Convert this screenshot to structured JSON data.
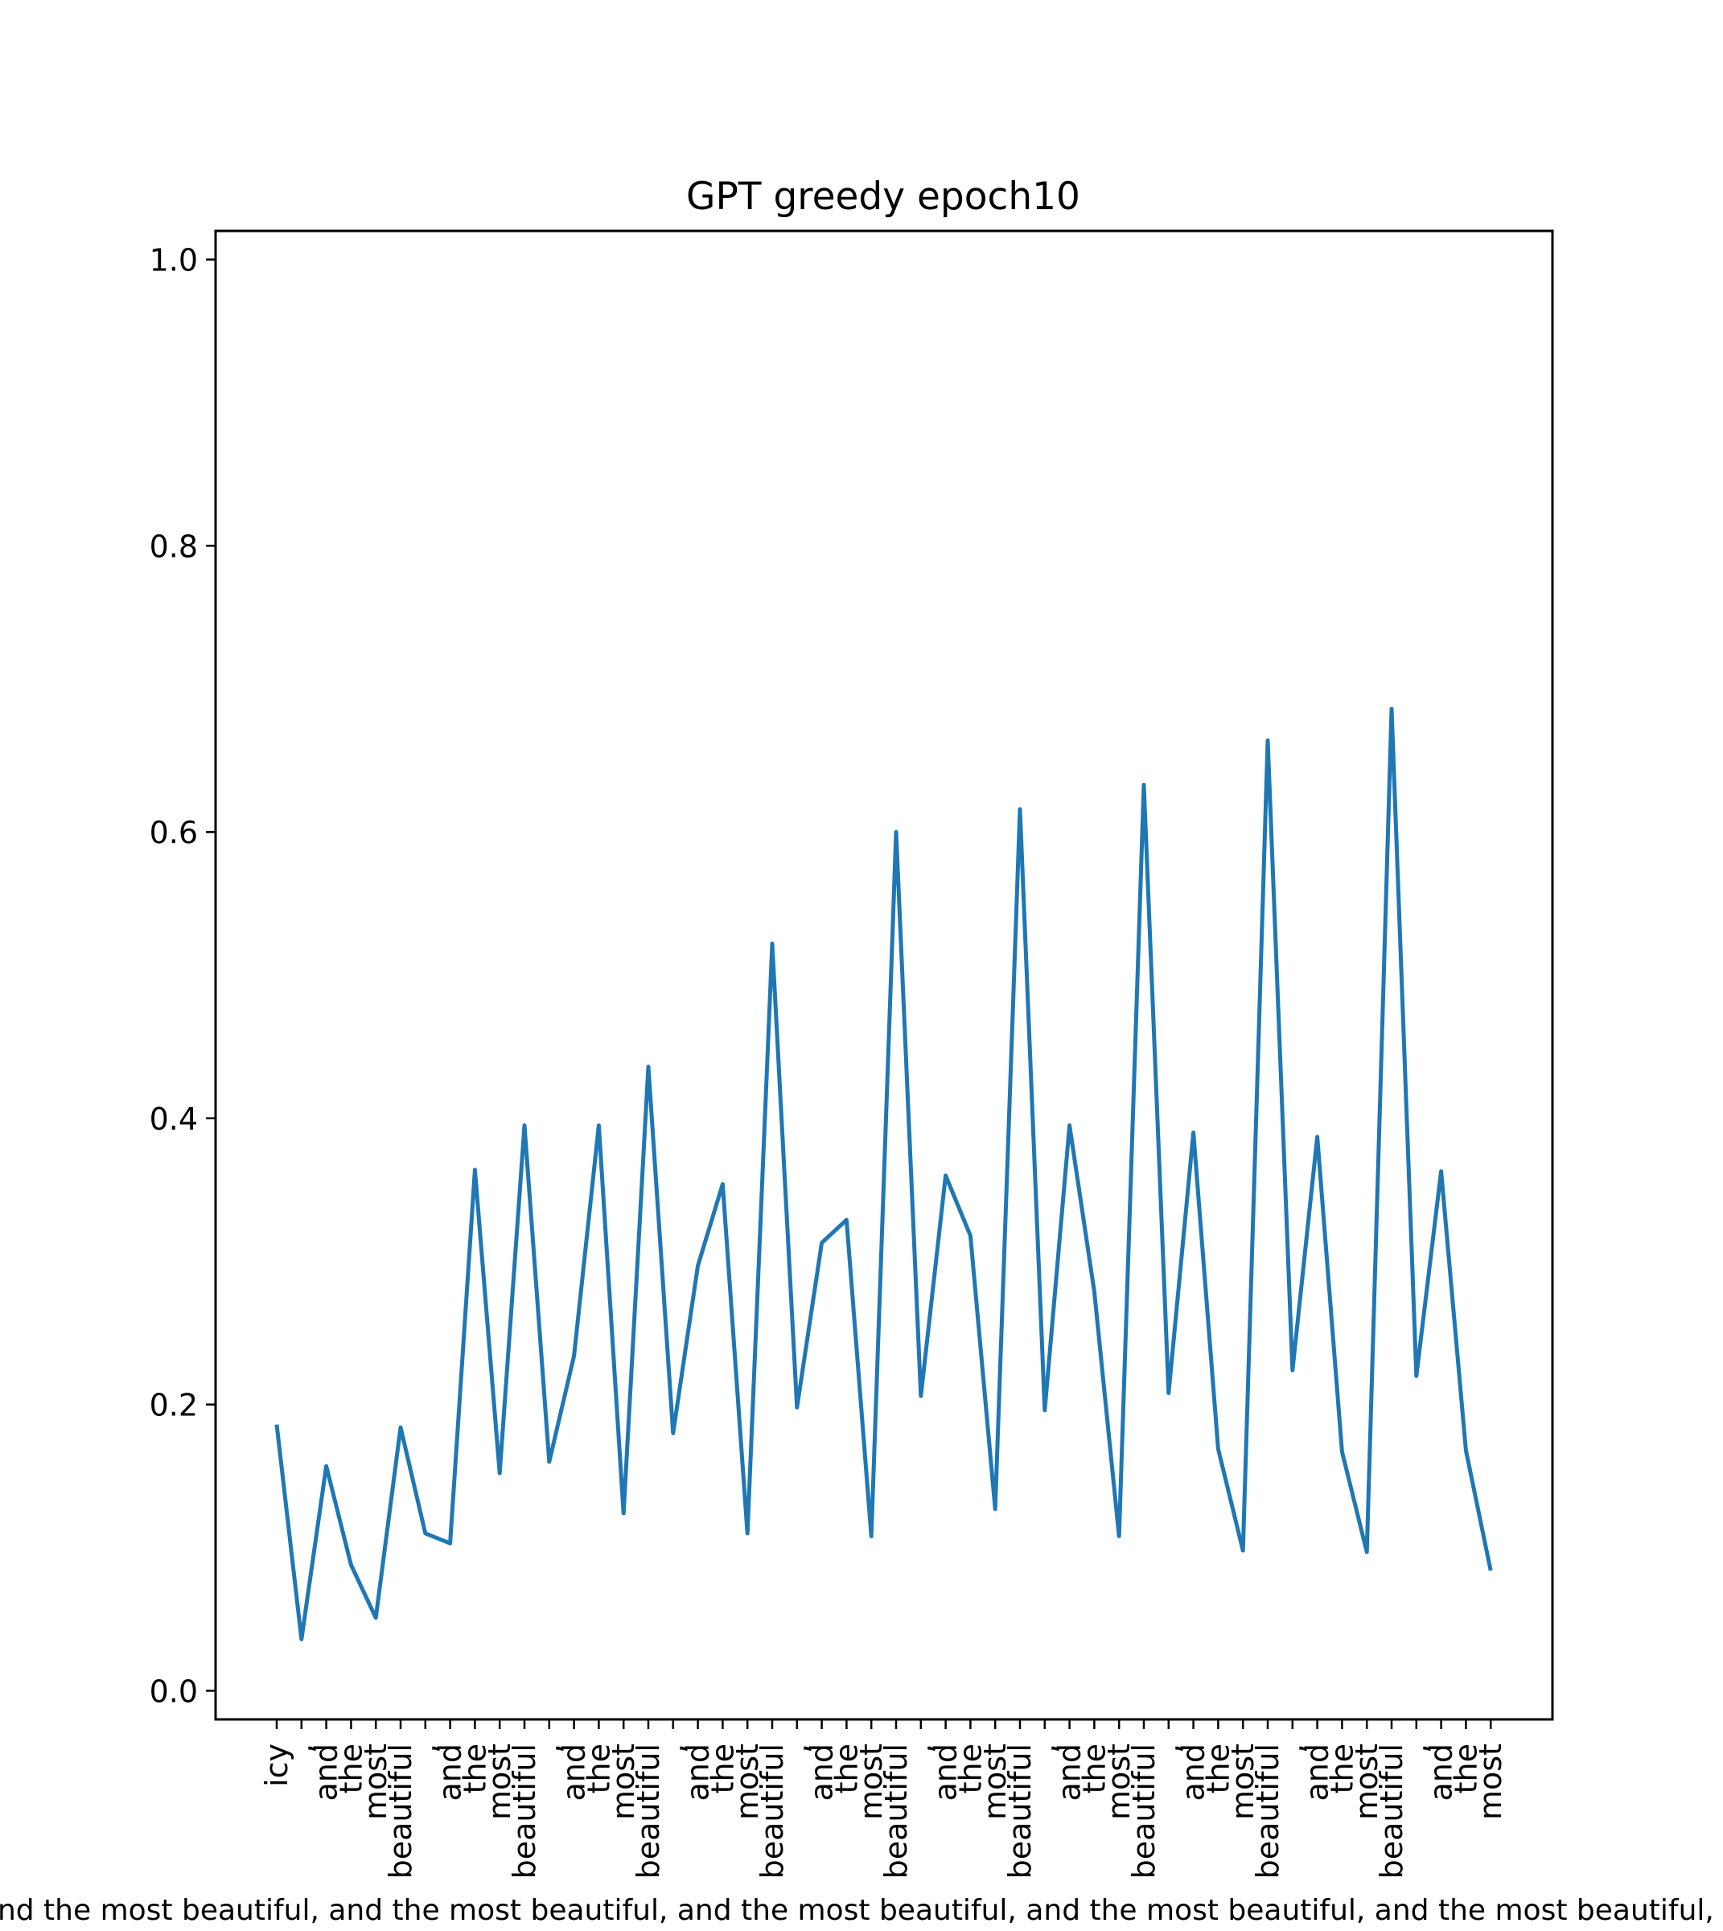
{
  "chart_data": {
    "type": "line",
    "title": "GPT greedy epoch10",
    "xlabel": "",
    "ylabel": "",
    "ylim": [
      -0.02,
      1.02
    ],
    "yticks": [
      0.0,
      0.2,
      0.4,
      0.6,
      0.8,
      1.0
    ],
    "ytick_labels": [
      "0.0",
      "0.2",
      "0.4",
      "0.6",
      "0.8",
      "1.0"
    ],
    "grid": false,
    "line_color": "#1f77b4",
    "categories": [
      "icy",
      ",",
      "and",
      "the",
      "most",
      "beautiful",
      ",",
      "and",
      "the",
      "most",
      "beautiful",
      ",",
      "and",
      "the",
      "most",
      "beautiful",
      ",",
      "and",
      "the",
      "most",
      "beautiful",
      ",",
      "and",
      "the",
      "most",
      "beautiful",
      ",",
      "and",
      "the",
      "most",
      "beautiful",
      ",",
      "and",
      "the",
      "most",
      "beautiful",
      ",",
      "and",
      "the",
      "most",
      "beautiful",
      ",",
      "and",
      "the",
      "most",
      "beautiful",
      ",",
      "and",
      "the",
      "most"
    ],
    "values": [
      0.186,
      0.036,
      0.157,
      0.088,
      0.051,
      0.184,
      0.11,
      0.103,
      0.364,
      0.152,
      0.395,
      0.16,
      0.234,
      0.395,
      0.124,
      0.436,
      0.18,
      0.297,
      0.354,
      0.11,
      0.522,
      0.198,
      0.313,
      0.329,
      0.108,
      0.6,
      0.206,
      0.36,
      0.318,
      0.127,
      0.616,
      0.196,
      0.395,
      0.279,
      0.108,
      0.633,
      0.208,
      0.39,
      0.169,
      0.098,
      0.664,
      0.224,
      0.387,
      0.167,
      0.097,
      0.686,
      0.22,
      0.363,
      0.168,
      0.084
    ]
  },
  "caption": ", and the most beautiful, and the most beautiful, and the most beautiful, and the most beautiful, and the most beautiful, and the most beautiful, and the most beautiful, and the most"
}
